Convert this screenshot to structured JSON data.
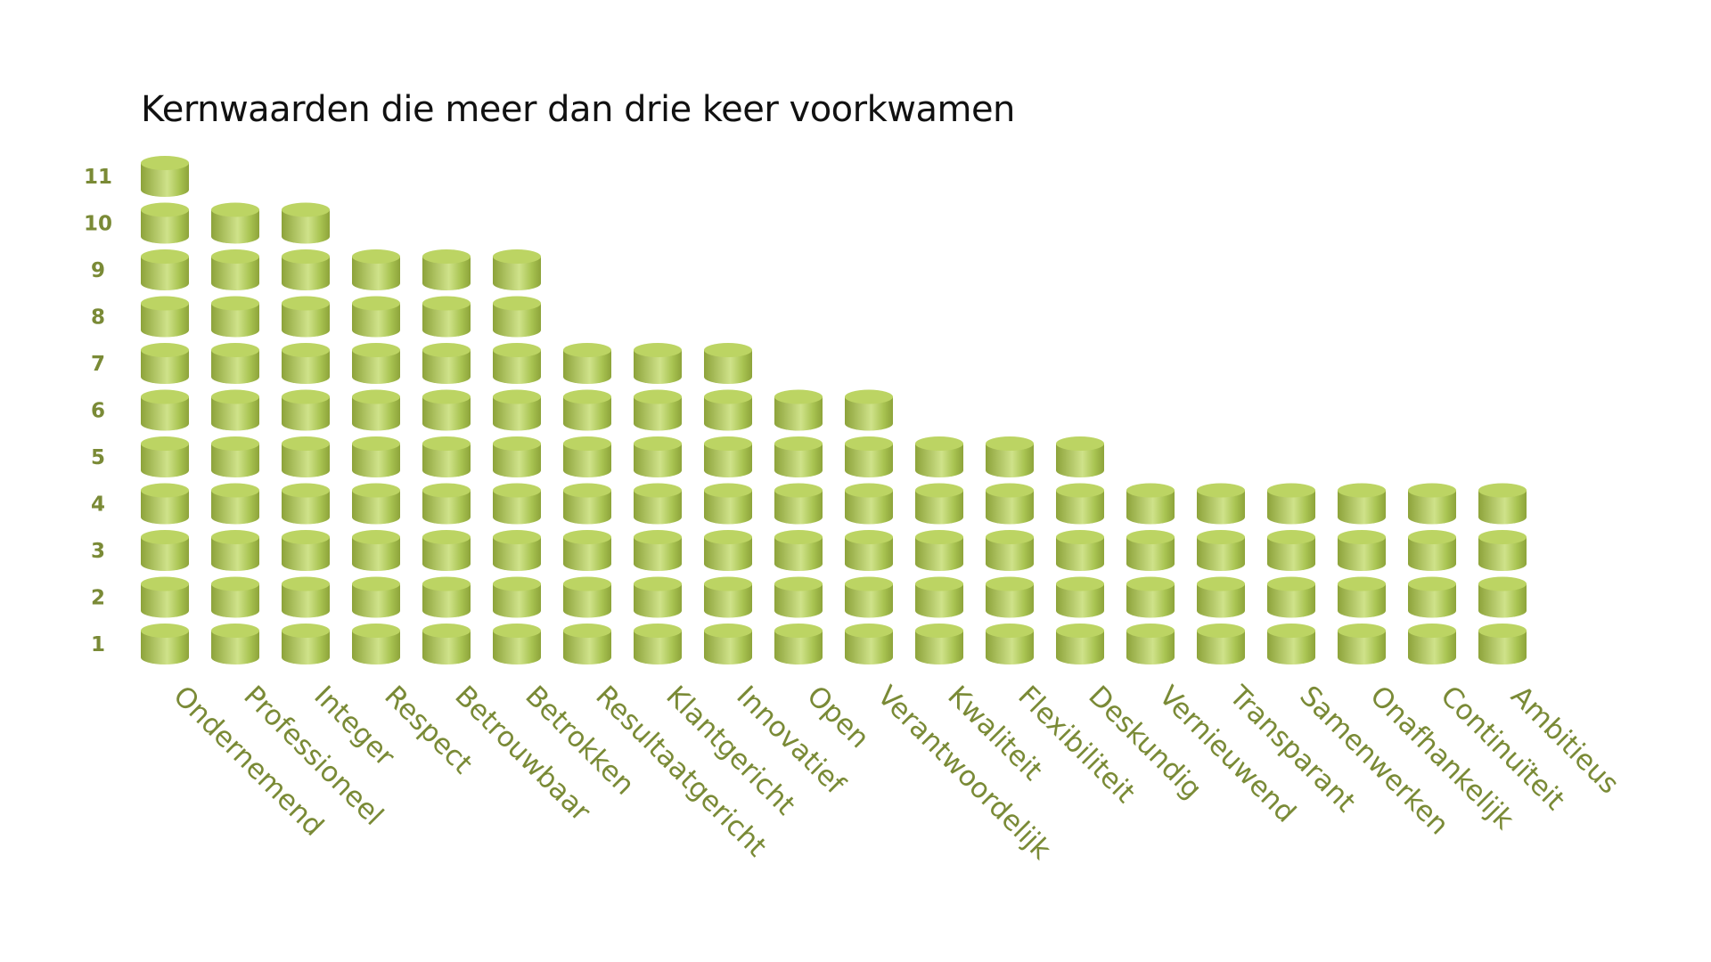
{
  "chart_data": {
    "type": "bar",
    "style": "stacked-cylinder-pictograph",
    "title": "Kernwaarden die meer dan drie keer voorkwamen",
    "xlabel": "",
    "ylabel": "",
    "ylim": [
      0,
      11
    ],
    "y_ticks": [
      "1",
      "2",
      "3",
      "4",
      "5",
      "6",
      "7",
      "8",
      "9",
      "10",
      "11"
    ],
    "grid": false,
    "legend": "none",
    "categories": [
      "Ondernemend",
      "Professioneel",
      "Integer",
      "Respect",
      "Betrouwbaar",
      "Betrokken",
      "Resultaatgericht",
      "Klantgericht",
      "Innovatief",
      "Open",
      "Verantwoordelijk",
      "Kwaliteit",
      "Flexibiliteit",
      "Deskundig",
      "Vernieuwend",
      "Transparant",
      "Samenwerken",
      "Onafhankelijk",
      "Continuïteit",
      "Ambitieus"
    ],
    "values": [
      11,
      10,
      10,
      9,
      9,
      9,
      7,
      7,
      7,
      6,
      6,
      5,
      5,
      5,
      4,
      4,
      4,
      4,
      4,
      4
    ],
    "colors": {
      "cylinder_dark": "#8da33a",
      "cylinder_mid": "#a9c452",
      "cylinder_light": "#cfe28a",
      "cylinder_top": "#bcd463",
      "label": "#7a8a36"
    }
  }
}
